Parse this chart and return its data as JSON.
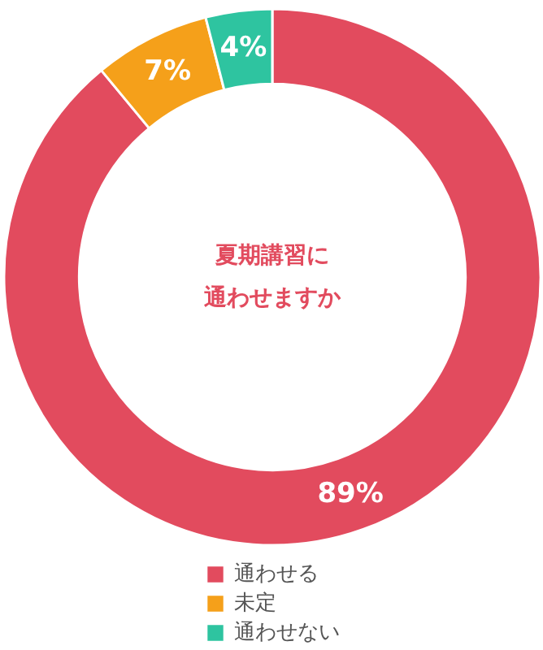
{
  "chart_data": {
    "type": "donut",
    "title": "夏期講習に通わせますか",
    "categories": [
      "通わせる",
      "未定",
      "通わせない"
    ],
    "values": [
      89,
      7,
      4
    ],
    "colors": [
      "#e24b5e",
      "#f5a01a",
      "#2ec4a0"
    ],
    "value_labels": [
      "89%",
      "7%",
      "4%"
    ],
    "legend": "bottom"
  }
}
